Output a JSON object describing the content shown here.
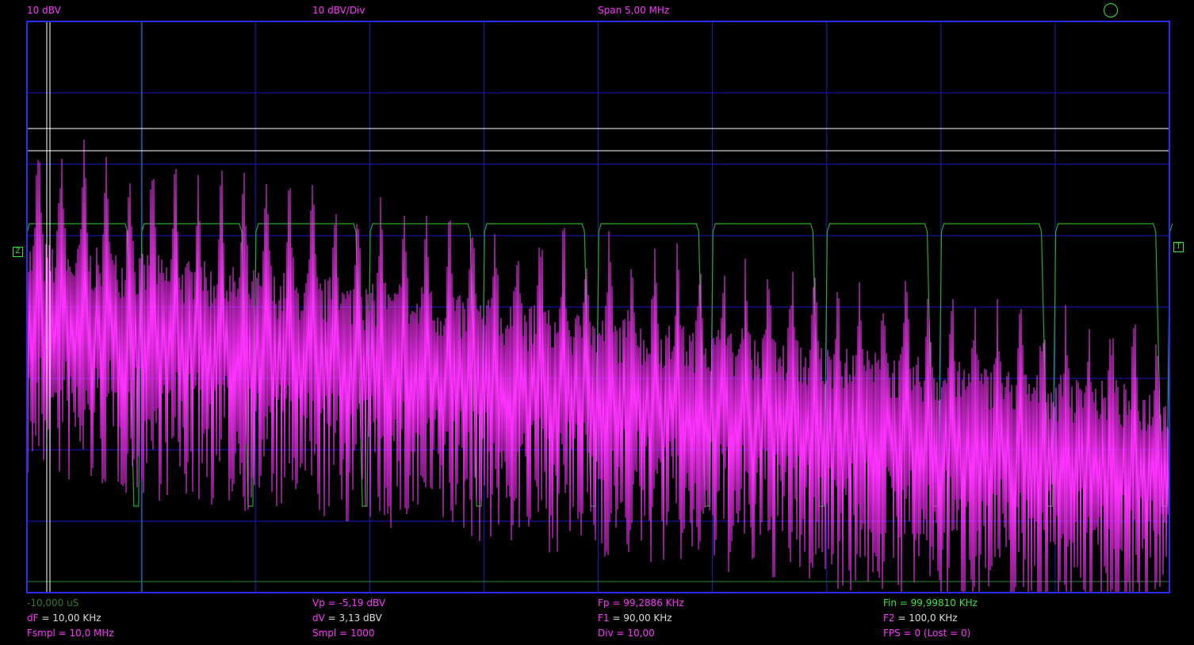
{
  "header": {
    "scale": "10 dBV",
    "vdiv": "10 dBV/Div",
    "span": "Span 5,00 MHz"
  },
  "markers": {
    "left": "Z",
    "right": "T"
  },
  "readouts": {
    "row1": {
      "time": "-10,000 uS",
      "vp": "Vp = -5,19 dBV",
      "fp": "Fp = 99,2886 KHz",
      "fin": "Fin = 99,99810 KHz"
    },
    "row2": {
      "df_label": "dF",
      "df_value": " = 10,00 KHz",
      "dv_label": "dV",
      "dv_value": " = 3,13 dBV",
      "f1_label": "F1",
      "f1_value": " = 90,00 KHz",
      "f2_label": "F2",
      "f2_value": " = 100,0 KHz"
    },
    "row3": {
      "fsmpl_label": "Fsmpl",
      "fsmpl_value": " = 10,0 MHz",
      "smpl": "Smpl = 1000",
      "div": "Div = 10,00",
      "fps": "FPS = 0 (Lost = 0)"
    }
  },
  "colors": {
    "grid": "#1a1acc",
    "frame": "#2a2aff",
    "spectrum": "#ff33ff",
    "square_wave": "#22aa22",
    "cursor": "#ffffff"
  },
  "chart_data": {
    "type": "line",
    "title": "Span 5,00 MHz",
    "ylabel": "10 dBV/Div",
    "x_divisions": 10,
    "y_divisions": 8,
    "series": [
      {
        "name": "spectrum",
        "color": "#ff33ff"
      },
      {
        "name": "square-wave",
        "color": "#22aa22"
      }
    ]
  }
}
